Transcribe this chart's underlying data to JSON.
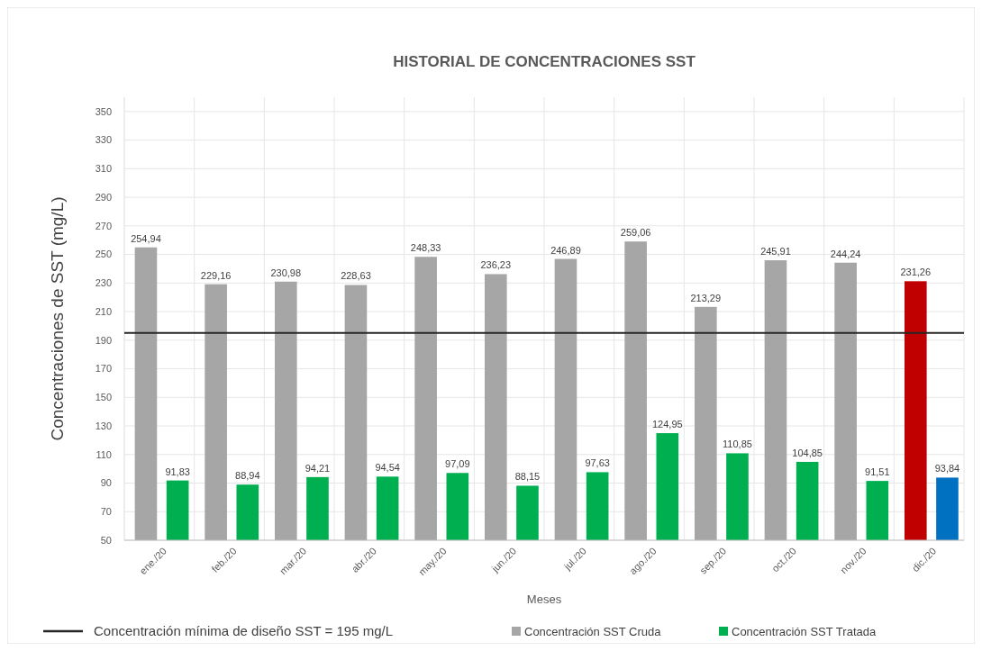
{
  "chart_data": {
    "type": "bar",
    "title": "HISTORIAL DE CONCENTRACIONES SST",
    "xlabel": "Meses",
    "ylabel": "Concentraciones de SST (mg/L)",
    "categories": [
      "ene./20",
      "feb./20",
      "mar./20",
      "abr./20",
      "may./20",
      "jun./20",
      "jul./20",
      "ago./20",
      "sep./20",
      "oct./20",
      "nov./20",
      "dic./20"
    ],
    "series": [
      {
        "name": "Concentración SST Cruda",
        "color": "#a6a6a6",
        "colors": [
          "#a6a6a6",
          "#a6a6a6",
          "#a6a6a6",
          "#a6a6a6",
          "#a6a6a6",
          "#a6a6a6",
          "#a6a6a6",
          "#a6a6a6",
          "#a6a6a6",
          "#a6a6a6",
          "#a6a6a6",
          "#c00000"
        ],
        "values": [
          254.94,
          229.16,
          230.98,
          228.63,
          248.33,
          236.23,
          246.89,
          259.06,
          213.29,
          245.91,
          244.24,
          231.26
        ],
        "value_labels": [
          "254,94",
          "229,16",
          "230,98",
          "228,63",
          "248,33",
          "236,23",
          "246,89",
          "259,06",
          "213,29",
          "245,91",
          "244,24",
          "231,26"
        ]
      },
      {
        "name": "Concentración SST Tratada",
        "color": "#00b050",
        "colors": [
          "#00b050",
          "#00b050",
          "#00b050",
          "#00b050",
          "#00b050",
          "#00b050",
          "#00b050",
          "#00b050",
          "#00b050",
          "#00b050",
          "#00b050",
          "#0070c0"
        ],
        "values": [
          91.83,
          88.94,
          94.21,
          94.54,
          97.09,
          88.15,
          97.63,
          124.95,
          110.85,
          104.85,
          91.51,
          93.84
        ],
        "value_labels": [
          "91,83",
          "88,94",
          "94,21",
          "94,54",
          "97,09",
          "88,15",
          "97,63",
          "124,95",
          "110,85",
          "104,85",
          "91,51",
          "93,84"
        ]
      }
    ],
    "ylim": [
      50,
      360
    ],
    "yticks": [
      50,
      70,
      90,
      110,
      130,
      150,
      170,
      190,
      210,
      230,
      250,
      270,
      290,
      310,
      330,
      350
    ],
    "ref_lines": [
      {
        "axis": "y",
        "value": 195,
        "label": "Concentración mínima de diseño SST = 195 mg/L",
        "color": "#262626"
      }
    ],
    "grid": true,
    "legend": "bottom"
  }
}
